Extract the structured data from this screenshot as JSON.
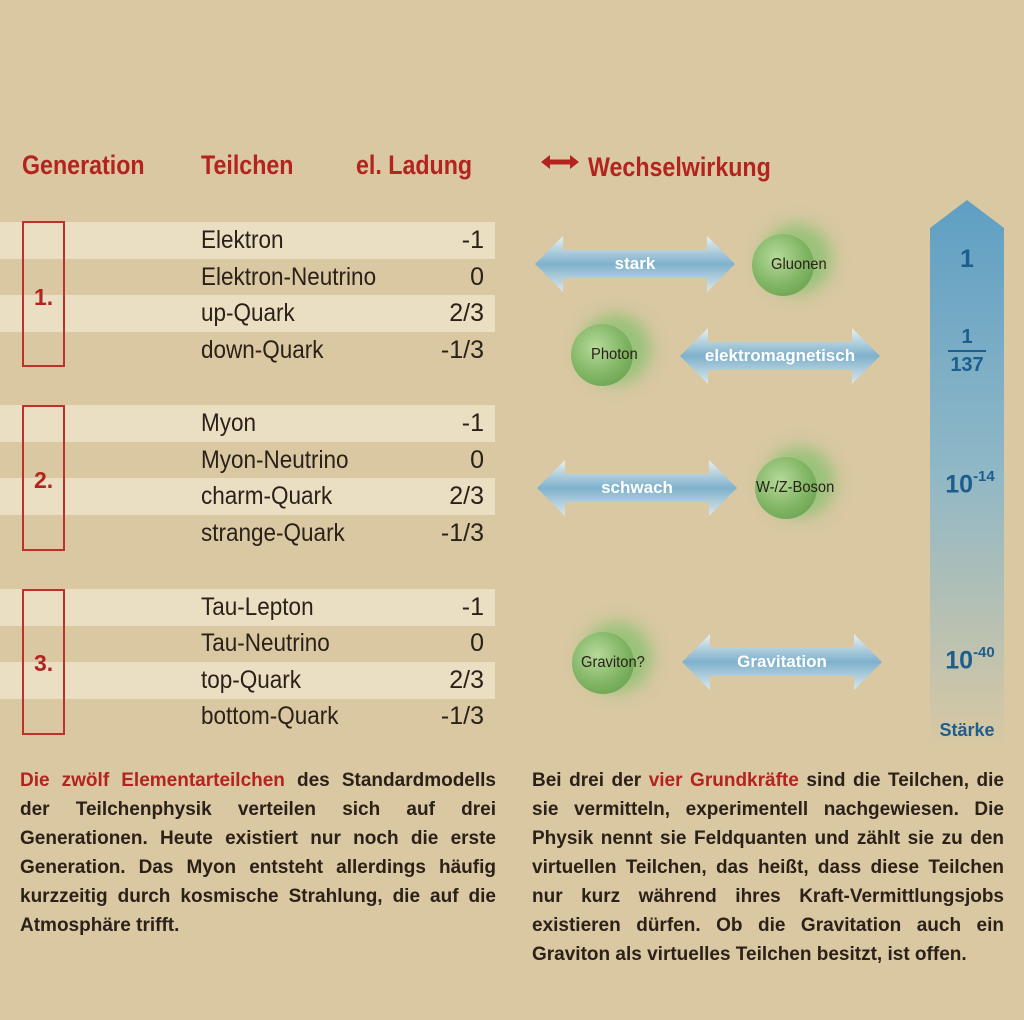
{
  "headers": {
    "generation": "Generation",
    "particles": "Teilchen",
    "charge": "el. Ladung",
    "interaction": "Wechselwirkung"
  },
  "generations": [
    {
      "label": "1.",
      "particles": [
        {
          "name": "Elektron",
          "charge": "-1"
        },
        {
          "name": "Elektron-Neutrino",
          "charge": "0"
        },
        {
          "name": "up-Quark",
          "charge": "2/3"
        },
        {
          "name": "down-Quark",
          "charge": "-1/3"
        }
      ]
    },
    {
      "label": "2.",
      "particles": [
        {
          "name": "Myon",
          "charge": "-1"
        },
        {
          "name": "Myon-Neutrino",
          "charge": "0"
        },
        {
          "name": "charm-Quark",
          "charge": "2/3"
        },
        {
          "name": "strange-Quark",
          "charge": "-1/3"
        }
      ]
    },
    {
      "label": "3.",
      "particles": [
        {
          "name": "Tau-Lepton",
          "charge": "-1"
        },
        {
          "name": "Tau-Neutrino",
          "charge": "0"
        },
        {
          "name": "top-Quark",
          "charge": "2/3"
        },
        {
          "name": "bottom-Quark",
          "charge": "-1/3"
        }
      ]
    }
  ],
  "forces": [
    {
      "name": "stark",
      "boson": "Gluonen",
      "strength_base": "1",
      "strength_exp": ""
    },
    {
      "name": "elektromagnetisch",
      "boson": "Photon",
      "strength_num": "1",
      "strength_den": "137"
    },
    {
      "name": "schwach",
      "boson": "W-/Z-Boson",
      "strength_base": "10",
      "strength_exp": "-14"
    },
    {
      "name": "Gravitation",
      "boson": "Graviton?",
      "strength_base": "10",
      "strength_exp": "-40"
    }
  ],
  "strength_label": "Stärke",
  "colors": {
    "background": "#d9c8a2",
    "band": "#ebdfc3",
    "accent_red": "#b32320",
    "strength_blue": "#1d5e8e",
    "boson_green": "#7fb462"
  },
  "text_left": {
    "highlight": "Die zwölf Elementarteilchen",
    "rest": " des Standardmodells der Teilchenphysik verteilen sich auf drei Generationen. Heute existiert nur noch die erste Generation. Das Myon entsteht allerdings häufig kurzzeitig durch kosmische Strahlung, die auf die Atmosphäre trifft."
  },
  "text_right": {
    "before": "Bei drei der ",
    "highlight": "vier Grundkräfte",
    "rest": " sind die Teilchen, die sie vermitteln, experimentell nachgewiesen. Die Physik nennt sie Feldquanten und zählt sie zu den virtuellen Teilchen, das heißt, dass diese Teilchen nur kurz während ihres Kraft-Vermittlungsjobs existieren dürfen. Ob die Gravitation auch ein Graviton als virtuelles Teilchen besitzt, ist offen."
  }
}
